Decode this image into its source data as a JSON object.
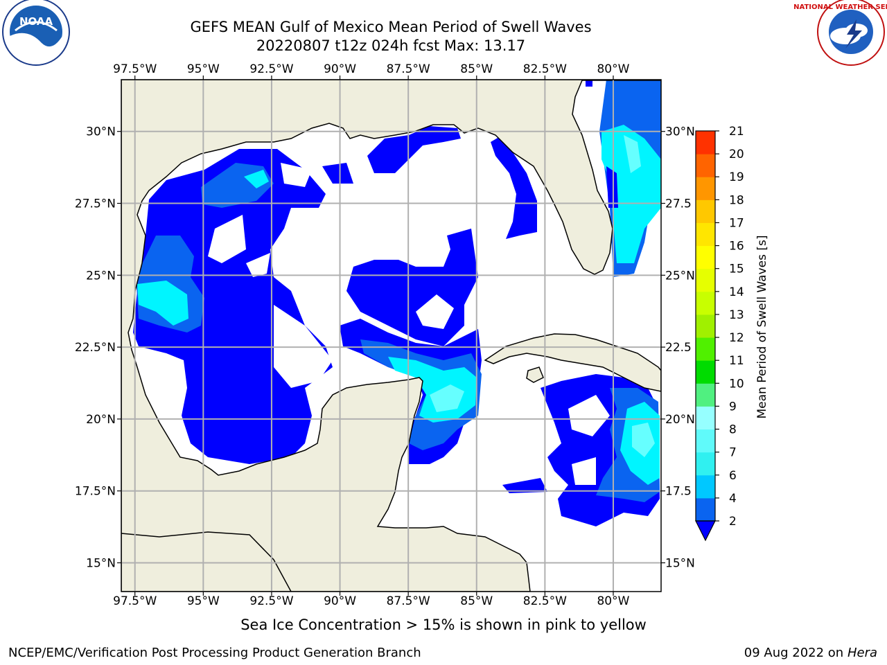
{
  "title_line1": "GEFS MEAN Gulf of Mexico Mean Period of Swell Waves",
  "title_line2": "20220807 t12z 024h fcst   Max: 13.17",
  "ice_note": "Sea Ice Concentration > 15% is shown in pink to yellow",
  "footer_left": "NCEP/EMC/Verification Post Processing Product Generation Branch",
  "footer_date": "09 Aug 2022 on",
  "footer_host": "Hera",
  "logo_left": "NOAA",
  "logo_right": "NATIONAL WEATHER SERVICE",
  "map": {
    "lon_range": [
      -98.0,
      -78.25
    ],
    "lat_range": [
      14.0,
      31.8
    ],
    "lon_ticks": [
      "97.5°W",
      "95°W",
      "92.5°W",
      "90°W",
      "87.5°W",
      "85°W",
      "82.5°W",
      "80°W"
    ],
    "lat_ticks_left": [
      "30°N",
      "27.5°N",
      "25°N",
      "22.5°N",
      "20°N",
      "17.5°N",
      "15°N"
    ],
    "lat_ticks_right": [
      "30°N",
      "27.5",
      "25°N",
      "22.5",
      "20°N",
      "17.5",
      "15°N"
    ],
    "grid": true
  },
  "colorbar": {
    "label": "Mean Period of Swell Waves [s]",
    "ticks": [
      "2",
      "4",
      "6",
      "7",
      "8",
      "9",
      "10",
      "11",
      "12",
      "13",
      "14",
      "15",
      "16",
      "17",
      "18",
      "19",
      "20",
      "21"
    ],
    "colors": [
      "#0a64f0",
      "#00c8ff",
      "#30f0f0",
      "#60fafa",
      "#96ffff",
      "#50f080",
      "#00dc00",
      "#50f000",
      "#a0f000",
      "#c8ff00",
      "#e6ff00",
      "#ffff00",
      "#ffe600",
      "#ffc800",
      "#ff9600",
      "#ff6400",
      "#ff3200",
      "#ff0000"
    ],
    "extend_color": "#0000ff"
  },
  "colors": {
    "land": "#efeedd",
    "ocean_low": "#ffffff",
    "wave_deep_blue": "#0000ff",
    "wave_blue": "#0a64f0",
    "wave_cyan": "#00f5ff",
    "wave_light": "#66ffff"
  }
}
